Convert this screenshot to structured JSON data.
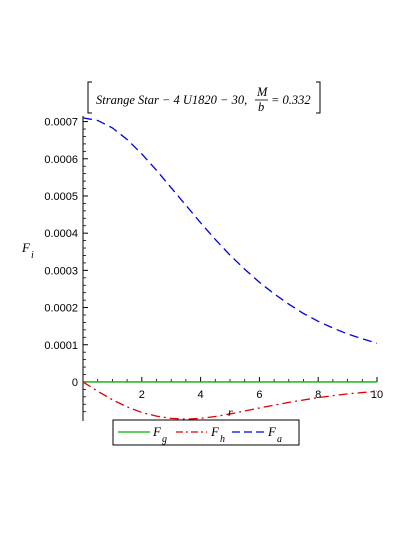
{
  "chart_data": {
    "type": "line",
    "title": {
      "prefix": "Strange Star − 4 U1820 − 30,",
      "frac_num": "M",
      "frac_den": "b",
      "suffix": "= 0.332"
    },
    "ylabel": {
      "base": "F",
      "sub": "i"
    },
    "xlabel": "r",
    "xlim": [
      0,
      10
    ],
    "ylim": [
      -0.000105,
      0.000715
    ],
    "x_ticks": [
      2,
      4,
      6,
      8,
      10
    ],
    "x_tick_labels": [
      "2",
      "4",
      "6",
      "8",
      "10"
    ],
    "y_ticks": [
      0,
      0.0001,
      0.0002,
      0.0003,
      0.0004,
      0.0005,
      0.0006,
      0.0007
    ],
    "y_tick_labels": [
      "0",
      "0.0001",
      "0.0002",
      "0.0003",
      "0.0004",
      "0.0005",
      "0.0006",
      "0.0007"
    ],
    "legend_position": "bottom",
    "series": [
      {
        "name": {
          "base": "F",
          "sub": "g"
        },
        "color": "#00b000",
        "dash": "solid",
        "x": [
          0,
          1,
          2,
          3,
          4,
          5,
          6,
          7,
          8,
          9,
          10
        ],
        "y": [
          0,
          0,
          0,
          0,
          0,
          0,
          0,
          0,
          0,
          0,
          0
        ]
      },
      {
        "name": {
          "base": "F",
          "sub": "h"
        },
        "color": "#e00000",
        "dash": "dash-dot",
        "x": [
          0,
          0.5,
          1,
          1.5,
          2,
          2.5,
          3,
          3.5,
          4,
          4.5,
          5,
          6,
          7,
          8,
          9,
          10
        ],
        "y": [
          0,
          -2.5e-05,
          -4.8e-05,
          -6.7e-05,
          -8.2e-05,
          -9.2e-05,
          -9.8e-05,
          -0.0001,
          -9.8e-05,
          -9.3e-05,
          -8.6e-05,
          -7e-05,
          -5.5e-05,
          -4.2e-05,
          -3.2e-05,
          -2.5e-05
        ]
      },
      {
        "name": {
          "base": "F",
          "sub": "a"
        },
        "color": "#0000e0",
        "dash": "dashed",
        "x": [
          0,
          0.5,
          1,
          1.5,
          2,
          2.5,
          3,
          3.5,
          4,
          4.5,
          5,
          5.5,
          6,
          6.5,
          7,
          7.5,
          8,
          8.5,
          9,
          9.5,
          10
        ],
        "y": [
          0.00071,
          0.000703,
          0.000683,
          0.000652,
          0.000613,
          0.000569,
          0.000522,
          0.000475,
          0.000428,
          0.000383,
          0.000341,
          0.000303,
          0.000268,
          0.000237,
          0.000209,
          0.000184,
          0.000163,
          0.000145,
          0.000129,
          0.000116,
          0.000104
        ]
      }
    ]
  }
}
